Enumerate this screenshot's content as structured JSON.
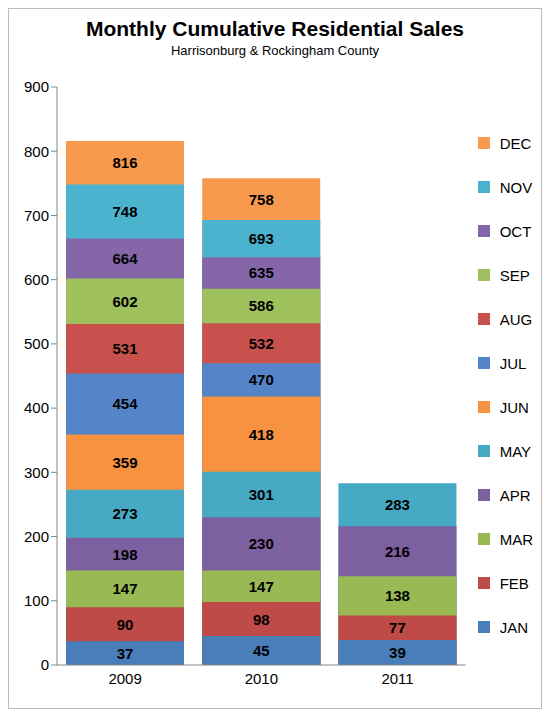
{
  "chart_data": {
    "type": "bar",
    "title": "Monthly Cumulative Residential Sales",
    "subtitle": "Harrisonburg & Rockingham County",
    "categories": [
      "2009",
      "2010",
      "2011"
    ],
    "stacked": false,
    "data_labels": true,
    "grid": false,
    "legend": "right",
    "ylim": [
      0,
      900
    ],
    "yticks": [
      0,
      100,
      200,
      300,
      400,
      500,
      600,
      700,
      800,
      900
    ],
    "series": [
      {
        "name": "JAN",
        "color": "#4a7ebb",
        "values": [
          37,
          45,
          39
        ]
      },
      {
        "name": "FEB",
        "color": "#be4b48",
        "values": [
          90,
          98,
          77
        ]
      },
      {
        "name": "MAR",
        "color": "#98b954",
        "values": [
          147,
          147,
          138
        ]
      },
      {
        "name": "APR",
        "color": "#7d60a0",
        "values": [
          198,
          230,
          216
        ]
      },
      {
        "name": "MAY",
        "color": "#46aac5",
        "values": [
          273,
          301,
          283
        ]
      },
      {
        "name": "JUN",
        "color": "#f69240",
        "values": [
          359,
          418,
          null
        ]
      },
      {
        "name": "JUL",
        "color": "#5585c8",
        "values": [
          454,
          470,
          null
        ]
      },
      {
        "name": "AUG",
        "color": "#c8504d",
        "values": [
          531,
          532,
          null
        ]
      },
      {
        "name": "SEP",
        "color": "#9fc15d",
        "values": [
          602,
          586,
          null
        ]
      },
      {
        "name": "OCT",
        "color": "#8466a9",
        "values": [
          664,
          635,
          null
        ]
      },
      {
        "name": "NOV",
        "color": "#4bb3ce",
        "values": [
          748,
          693,
          null
        ]
      },
      {
        "name": "DEC",
        "color": "#f89a4e",
        "values": [
          816,
          758,
          null
        ]
      }
    ]
  }
}
